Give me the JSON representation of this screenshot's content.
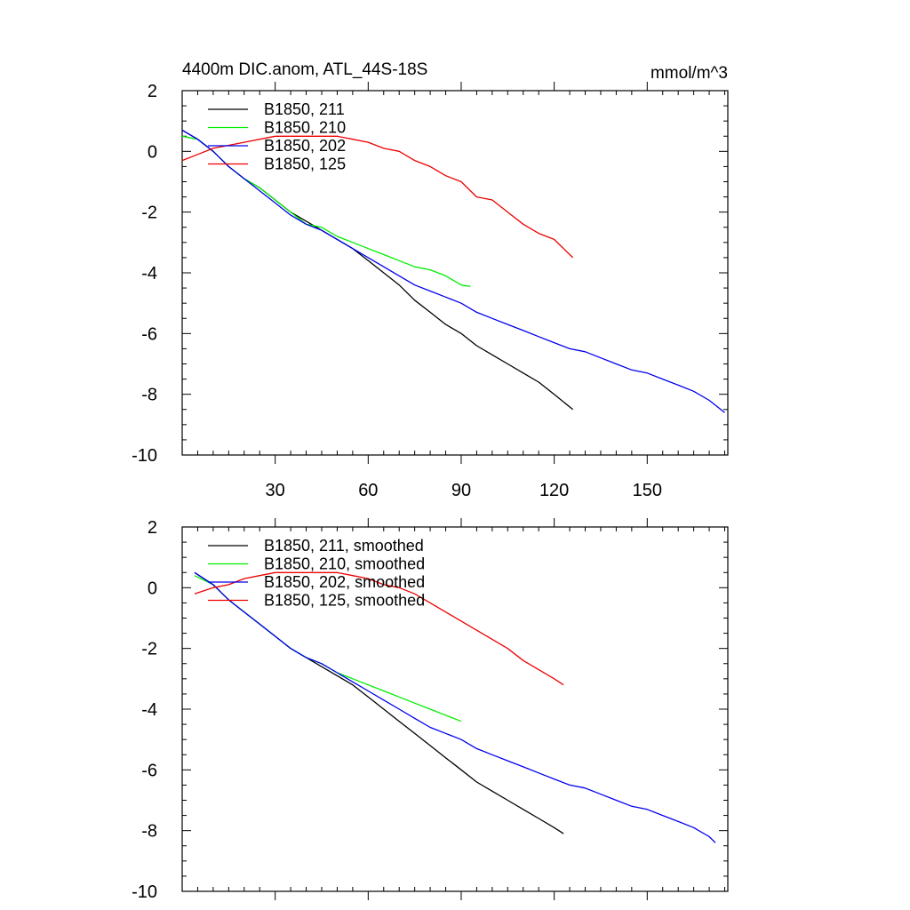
{
  "chart_data": [
    {
      "type": "line",
      "title": "4400m DIC.anom, ATL_44S-18S",
      "units": "mmol/m^3",
      "xlabel": "",
      "ylabel": "",
      "xlim": [
        0,
        176
      ],
      "ylim": [
        -10,
        2
      ],
      "xticks": [
        30,
        60,
        90,
        120,
        150
      ],
      "xtick_labels": [
        "30",
        "60",
        "90",
        "120",
        "150"
      ],
      "yticks": [
        2,
        0,
        -2,
        -4,
        -6,
        -8,
        -10
      ],
      "ytick_labels": [
        "2",
        "0",
        "-2",
        "-4",
        "-6",
        "-8",
        "-10"
      ],
      "legend_position": "top-left",
      "series": [
        {
          "name": "B1850, 211",
          "color": "#000000",
          "x": [
            0,
            5,
            10,
            15,
            20,
            25,
            30,
            35,
            40,
            45,
            50,
            55,
            60,
            65,
            70,
            75,
            80,
            85,
            90,
            95,
            100,
            105,
            110,
            115,
            120,
            126
          ],
          "y": [
            0.7,
            0.4,
            0.0,
            -0.5,
            -0.9,
            -1.2,
            -1.6,
            -2.0,
            -2.3,
            -2.6,
            -2.9,
            -3.2,
            -3.6,
            -4.0,
            -4.4,
            -4.9,
            -5.3,
            -5.7,
            -6.0,
            -6.4,
            -6.7,
            -7.0,
            -7.3,
            -7.6,
            -8.0,
            -8.5
          ]
        },
        {
          "name": "B1850, 210",
          "color": "#00ee00",
          "x": [
            0,
            5,
            10,
            15,
            20,
            25,
            30,
            35,
            40,
            45,
            50,
            55,
            60,
            65,
            70,
            75,
            80,
            85,
            90,
            93
          ],
          "y": [
            0.5,
            0.4,
            0.0,
            -0.5,
            -0.9,
            -1.2,
            -1.6,
            -2.0,
            -2.4,
            -2.5,
            -2.8,
            -3.0,
            -3.2,
            -3.4,
            -3.6,
            -3.8,
            -3.9,
            -4.1,
            -4.4,
            -4.45
          ]
        },
        {
          "name": "B1850, 202",
          "color": "#0000ee",
          "x": [
            0,
            5,
            10,
            15,
            20,
            25,
            30,
            35,
            40,
            45,
            50,
            55,
            60,
            65,
            70,
            75,
            80,
            85,
            90,
            95,
            100,
            105,
            110,
            115,
            120,
            125,
            130,
            135,
            140,
            145,
            150,
            155,
            160,
            165,
            170,
            175
          ],
          "y": [
            0.7,
            0.4,
            0.0,
            -0.5,
            -0.9,
            -1.3,
            -1.7,
            -2.1,
            -2.4,
            -2.6,
            -2.9,
            -3.2,
            -3.5,
            -3.8,
            -4.1,
            -4.4,
            -4.6,
            -4.8,
            -5.0,
            -5.3,
            -5.5,
            -5.7,
            -5.9,
            -6.1,
            -6.3,
            -6.5,
            -6.6,
            -6.8,
            -7.0,
            -7.2,
            -7.3,
            -7.5,
            -7.7,
            -7.9,
            -8.2,
            -8.6
          ]
        },
        {
          "name": "B1850, 125",
          "color": "#ee0000",
          "x": [
            0,
            5,
            10,
            15,
            20,
            25,
            30,
            35,
            40,
            45,
            50,
            55,
            60,
            65,
            70,
            75,
            80,
            85,
            90,
            95,
            100,
            105,
            110,
            115,
            120,
            126
          ],
          "y": [
            -0.3,
            -0.1,
            0.1,
            0.2,
            0.3,
            0.4,
            0.5,
            0.5,
            0.5,
            0.5,
            0.5,
            0.4,
            0.3,
            0.1,
            0.0,
            -0.3,
            -0.5,
            -0.8,
            -1.0,
            -1.5,
            -1.6,
            -2.0,
            -2.4,
            -2.7,
            -2.9,
            -3.5
          ]
        }
      ]
    },
    {
      "type": "line",
      "title": "",
      "xlim": [
        0,
        176
      ],
      "ylim": [
        -10,
        2
      ],
      "xticks": [
        30,
        60,
        90,
        120,
        150
      ],
      "yticks": [
        2,
        0,
        -2,
        -4,
        -6,
        -8,
        -10
      ],
      "ytick_labels": [
        "2",
        "0",
        "-2",
        "-4",
        "-6",
        "-8",
        "-10"
      ],
      "legend_position": "top-left",
      "series": [
        {
          "name": "B1850, 211, smoothed",
          "color": "#000000",
          "x": [
            4,
            10,
            15,
            20,
            25,
            30,
            35,
            40,
            45,
            50,
            55,
            60,
            65,
            70,
            75,
            80,
            85,
            90,
            95,
            100,
            105,
            110,
            115,
            120,
            123
          ],
          "y": [
            0.5,
            0.1,
            -0.4,
            -0.8,
            -1.2,
            -1.6,
            -2.0,
            -2.3,
            -2.6,
            -2.9,
            -3.2,
            -3.6,
            -4.0,
            -4.4,
            -4.8,
            -5.2,
            -5.6,
            -6.0,
            -6.4,
            -6.7,
            -7.0,
            -7.3,
            -7.6,
            -7.9,
            -8.1
          ]
        },
        {
          "name": "B1850, 210, smoothed",
          "color": "#00ee00",
          "x": [
            4,
            10,
            15,
            20,
            25,
            30,
            35,
            40,
            45,
            50,
            55,
            60,
            65,
            70,
            75,
            80,
            85,
            90
          ],
          "y": [
            0.4,
            0.1,
            -0.4,
            -0.8,
            -1.2,
            -1.6,
            -2.0,
            -2.3,
            -2.5,
            -2.8,
            -3.0,
            -3.2,
            -3.4,
            -3.6,
            -3.8,
            -4.0,
            -4.2,
            -4.4
          ]
        },
        {
          "name": "B1850, 202, smoothed",
          "color": "#0000ee",
          "x": [
            4,
            10,
            15,
            20,
            25,
            30,
            35,
            40,
            45,
            50,
            55,
            60,
            65,
            70,
            75,
            80,
            85,
            90,
            95,
            100,
            105,
            110,
            115,
            120,
            125,
            130,
            135,
            140,
            145,
            150,
            155,
            160,
            165,
            170,
            172
          ],
          "y": [
            0.5,
            0.1,
            -0.4,
            -0.8,
            -1.2,
            -1.6,
            -2.0,
            -2.3,
            -2.5,
            -2.8,
            -3.1,
            -3.4,
            -3.7,
            -4.0,
            -4.3,
            -4.6,
            -4.8,
            -5.0,
            -5.3,
            -5.5,
            -5.7,
            -5.9,
            -6.1,
            -6.3,
            -6.5,
            -6.6,
            -6.8,
            -7.0,
            -7.2,
            -7.3,
            -7.5,
            -7.7,
            -7.9,
            -8.2,
            -8.4
          ]
        },
        {
          "name": "B1850, 125, smoothed",
          "color": "#ee0000",
          "x": [
            4,
            10,
            15,
            20,
            25,
            30,
            35,
            40,
            45,
            50,
            55,
            60,
            65,
            70,
            75,
            80,
            85,
            90,
            95,
            100,
            105,
            110,
            115,
            120,
            123
          ],
          "y": [
            -0.2,
            0.0,
            0.1,
            0.3,
            0.4,
            0.5,
            0.5,
            0.5,
            0.5,
            0.5,
            0.4,
            0.3,
            0.1,
            0.0,
            -0.2,
            -0.5,
            -0.8,
            -1.1,
            -1.4,
            -1.7,
            -2.0,
            -2.4,
            -2.7,
            -3.0,
            -3.2
          ]
        }
      ]
    }
  ]
}
